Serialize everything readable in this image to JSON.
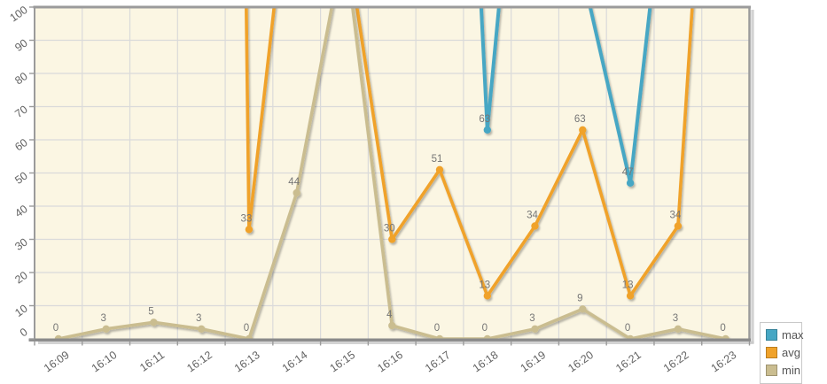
{
  "chart_data": {
    "type": "line",
    "title": "",
    "xlabel": "",
    "ylabel": "",
    "categories": [
      "16:09",
      "16:10",
      "16:11",
      "16:12",
      "16:13",
      "16:14",
      "16:15",
      "16:16",
      "16:17",
      "16:18",
      "16:19",
      "16:20",
      "16:21",
      "16:22",
      "16:23"
    ],
    "y_ticks": [
      0,
      10,
      20,
      30,
      40,
      50,
      60,
      70,
      80,
      90,
      100
    ],
    "ylim": [
      0,
      100
    ],
    "grid": true,
    "legend_position": "bottom-right-outside",
    "note": "Lines repeatedly exit the top of the plot; null in values_visible means the point is off-scale above 100. render_values contains slope-based estimates used only to redraw the clipped line geometry.",
    "series": [
      {
        "name": "max",
        "color": "#46A7C4",
        "values_visible": [
          null,
          null,
          null,
          null,
          null,
          null,
          null,
          null,
          null,
          63,
          null,
          null,
          47,
          null,
          null
        ],
        "render_values": [
          400,
          400,
          400,
          400,
          400,
          400,
          400,
          400,
          350,
          63,
          215,
          110,
          47,
          175,
          400
        ],
        "labeled_points": {
          "16:18": 63,
          "16:21": 47
        }
      },
      {
        "name": "avg",
        "color": "#F0A22A",
        "values_visible": [
          null,
          null,
          null,
          null,
          33,
          null,
          null,
          30,
          51,
          13,
          34,
          63,
          13,
          34,
          null
        ],
        "render_values": [
          1200,
          1200,
          1200,
          1200,
          33,
          160,
          125,
          30,
          51,
          13,
          34,
          63,
          13,
          34,
          255
        ],
        "labeled_points": {
          "16:13": 33,
          "16:16": 30,
          "16:17": 51,
          "16:18": 13,
          "16:19": 34,
          "16:20": 63,
          "16:21": 13,
          "16:22": 34
        }
      },
      {
        "name": "min",
        "color": "#CABD90",
        "values_visible": [
          0,
          3,
          5,
          3,
          0,
          44,
          null,
          4,
          0,
          0,
          3,
          9,
          0,
          3,
          0
        ],
        "render_values": [
          0,
          3,
          5,
          3,
          0,
          44,
          120,
          4,
          0,
          0,
          3,
          9,
          0,
          3,
          0
        ],
        "labeled_points": {
          "16:09": 0,
          "16:10": 3,
          "16:11": 5,
          "16:12": 3,
          "16:13": 0,
          "16:14": 44,
          "16:16": 4,
          "16:17": 0,
          "16:18": 0,
          "16:19": 3,
          "16:20": 9,
          "16:21": 0,
          "16:22": 3,
          "16:23": 0
        }
      }
    ]
  },
  "legend": {
    "items": [
      {
        "label": "max",
        "color": "#46A7C4"
      },
      {
        "label": "avg",
        "color": "#F0A22A"
      },
      {
        "label": "min",
        "color": "#CABD90"
      }
    ]
  },
  "colors": {
    "plot_background": "#FBF6E3",
    "gridline": "#DADADA",
    "border": "#9B9B9B",
    "axis_line": "#8A8A8A",
    "shadow": "#C8C8C8",
    "tick_label": "#636363",
    "point_label": "#767676",
    "legend_border": "#C9C9C9",
    "legend_text": "#555555"
  }
}
